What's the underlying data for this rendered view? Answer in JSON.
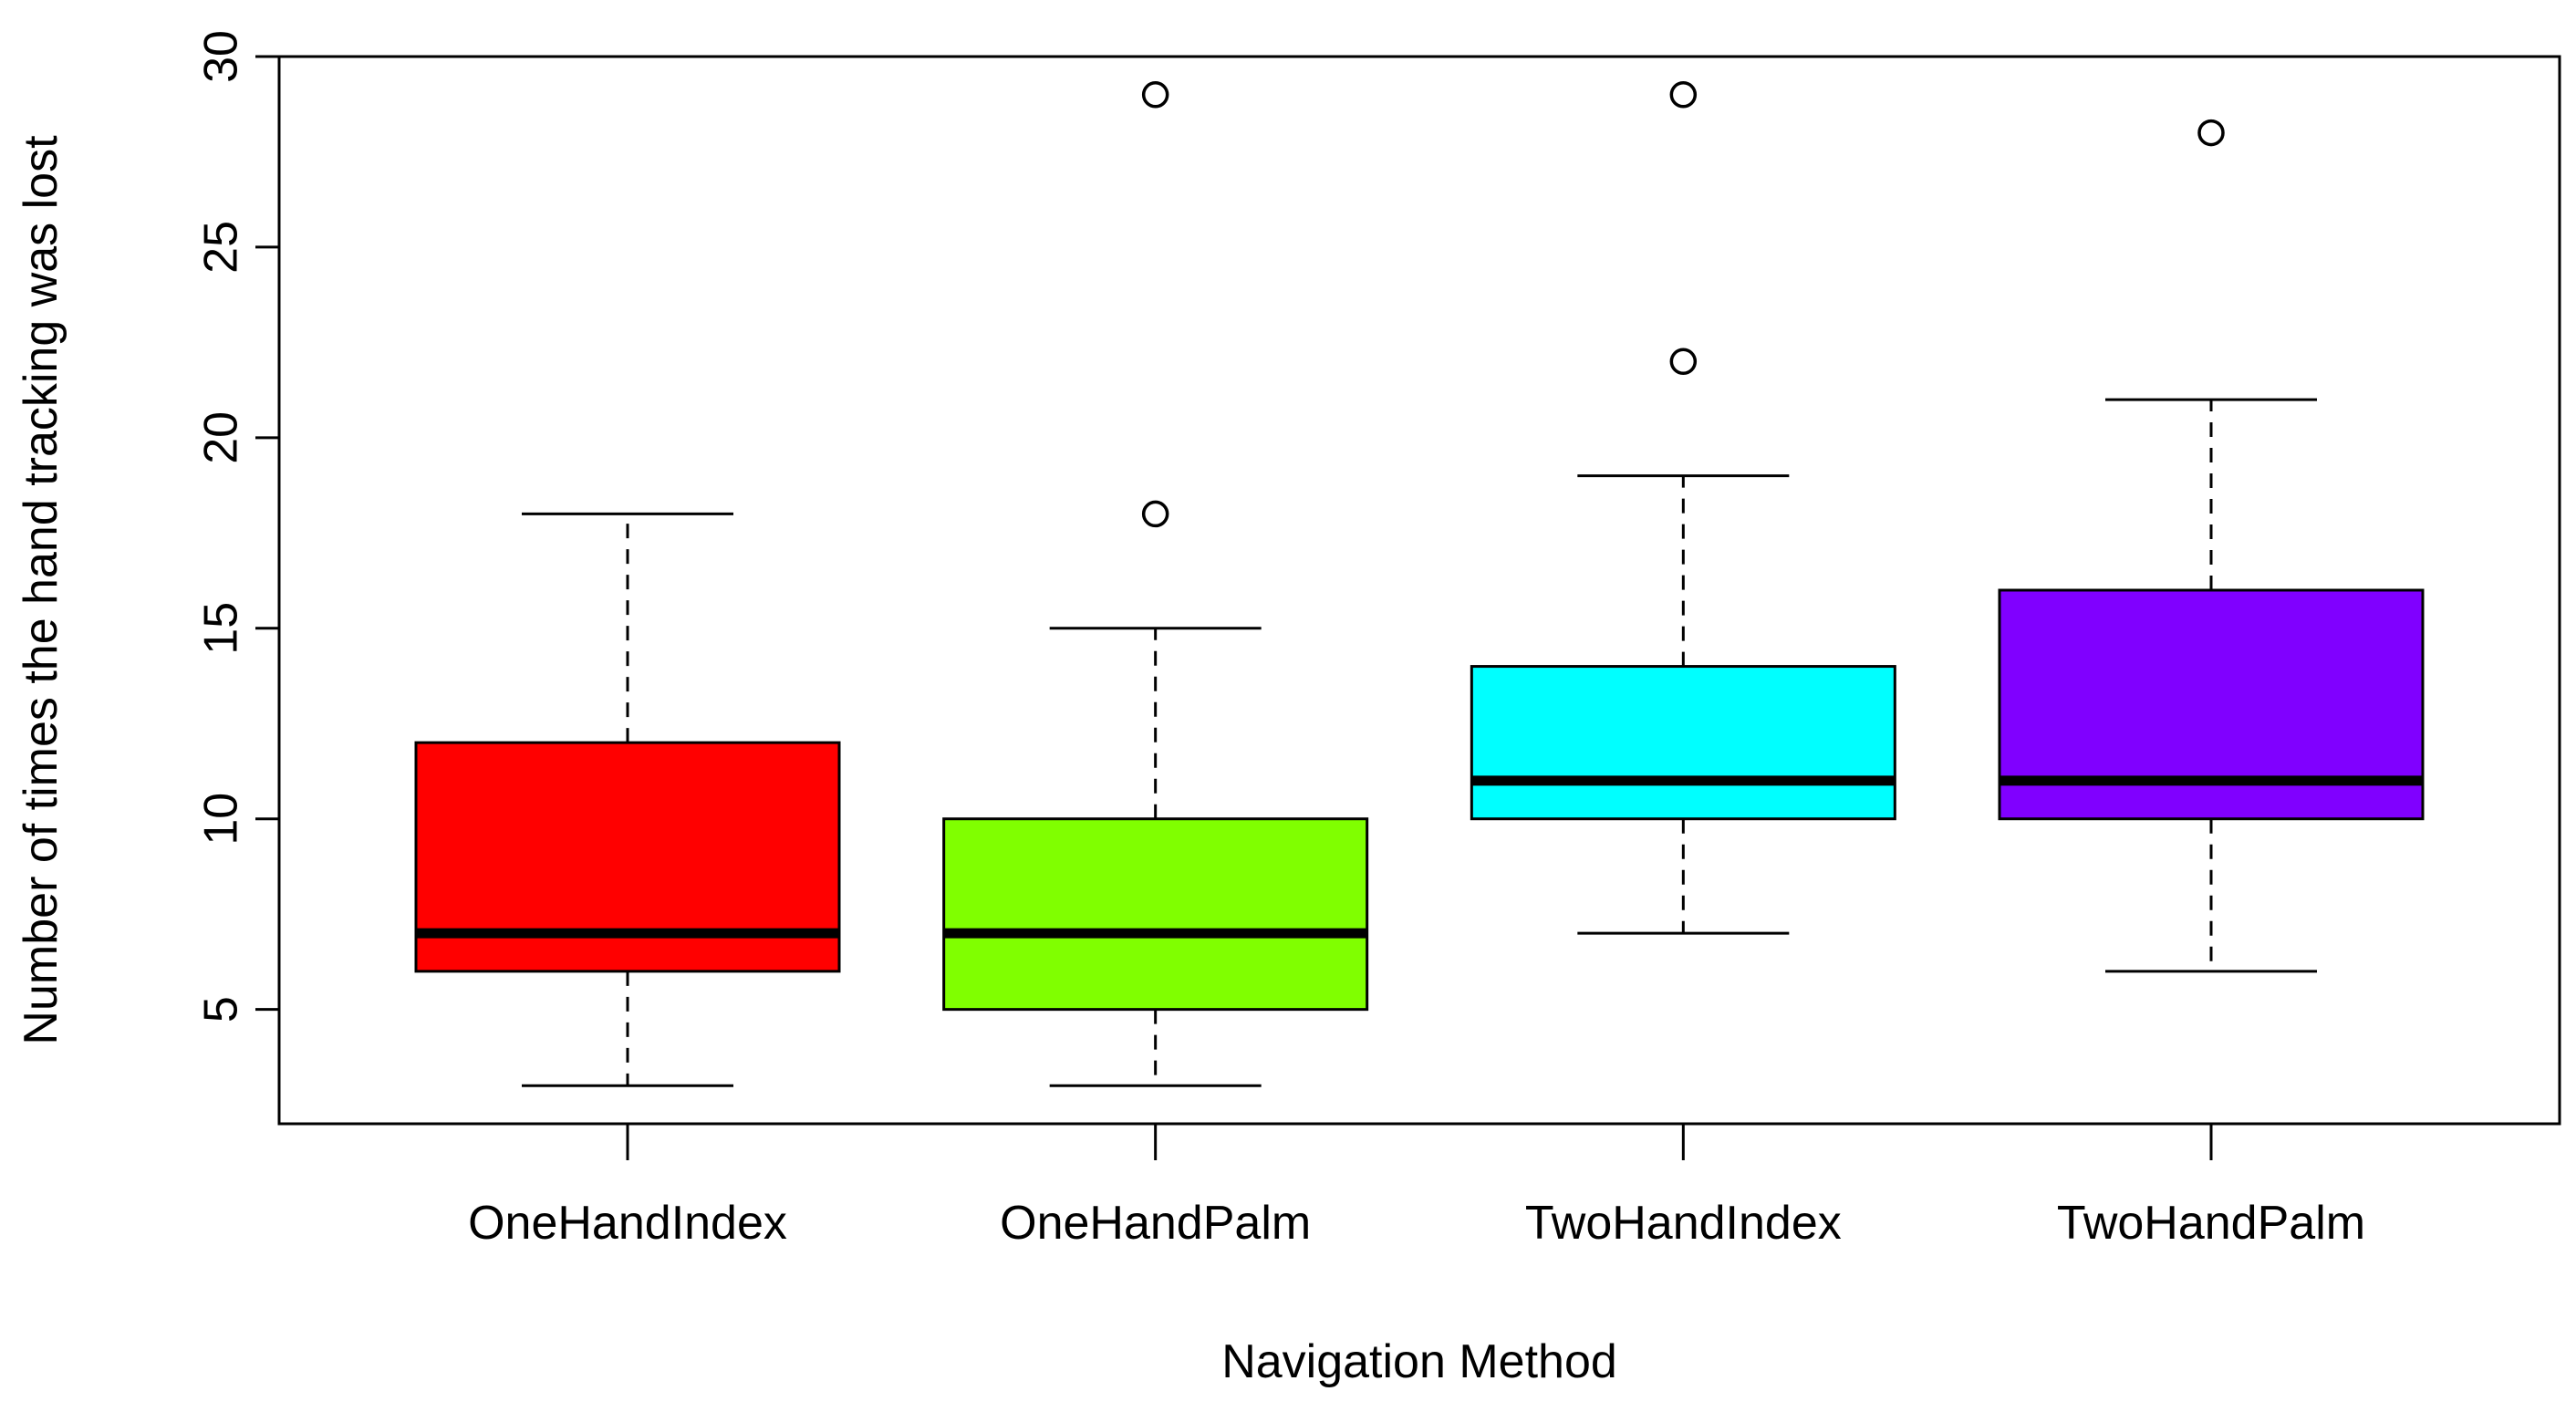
{
  "chart_data": {
    "type": "boxplot",
    "title": "",
    "xlabel": "Navigation Method",
    "ylabel": "Number of times the hand tracking was lost",
    "ylim": [
      2,
      30
    ],
    "yticks": [
      5,
      10,
      15,
      20,
      25,
      30
    ],
    "grid": false,
    "legend": "none",
    "categories": [
      "OneHandIndex",
      "OneHandPalm",
      "TwoHandIndex",
      "TwoHandPalm"
    ],
    "boxes": [
      {
        "category": "OneHandIndex",
        "color": "#ff0000",
        "whisker_low": 3,
        "q1": 6,
        "median": 7,
        "q3": 12,
        "whisker_high": 18,
        "outliers": []
      },
      {
        "category": "OneHandPalm",
        "color": "#80ff00",
        "whisker_low": 3,
        "q1": 5,
        "median": 7,
        "q3": 10,
        "whisker_high": 15,
        "outliers": [
          18,
          29
        ]
      },
      {
        "category": "TwoHandIndex",
        "color": "#00ffff",
        "whisker_low": 7,
        "q1": 10,
        "median": 11,
        "q3": 14,
        "whisker_high": 19,
        "outliers": [
          22,
          29
        ]
      },
      {
        "category": "TwoHandPalm",
        "color": "#8000ff",
        "whisker_low": 6,
        "q1": 10,
        "median": 11,
        "q3": 16,
        "whisker_high": 21,
        "outliers": [
          28
        ]
      }
    ]
  }
}
